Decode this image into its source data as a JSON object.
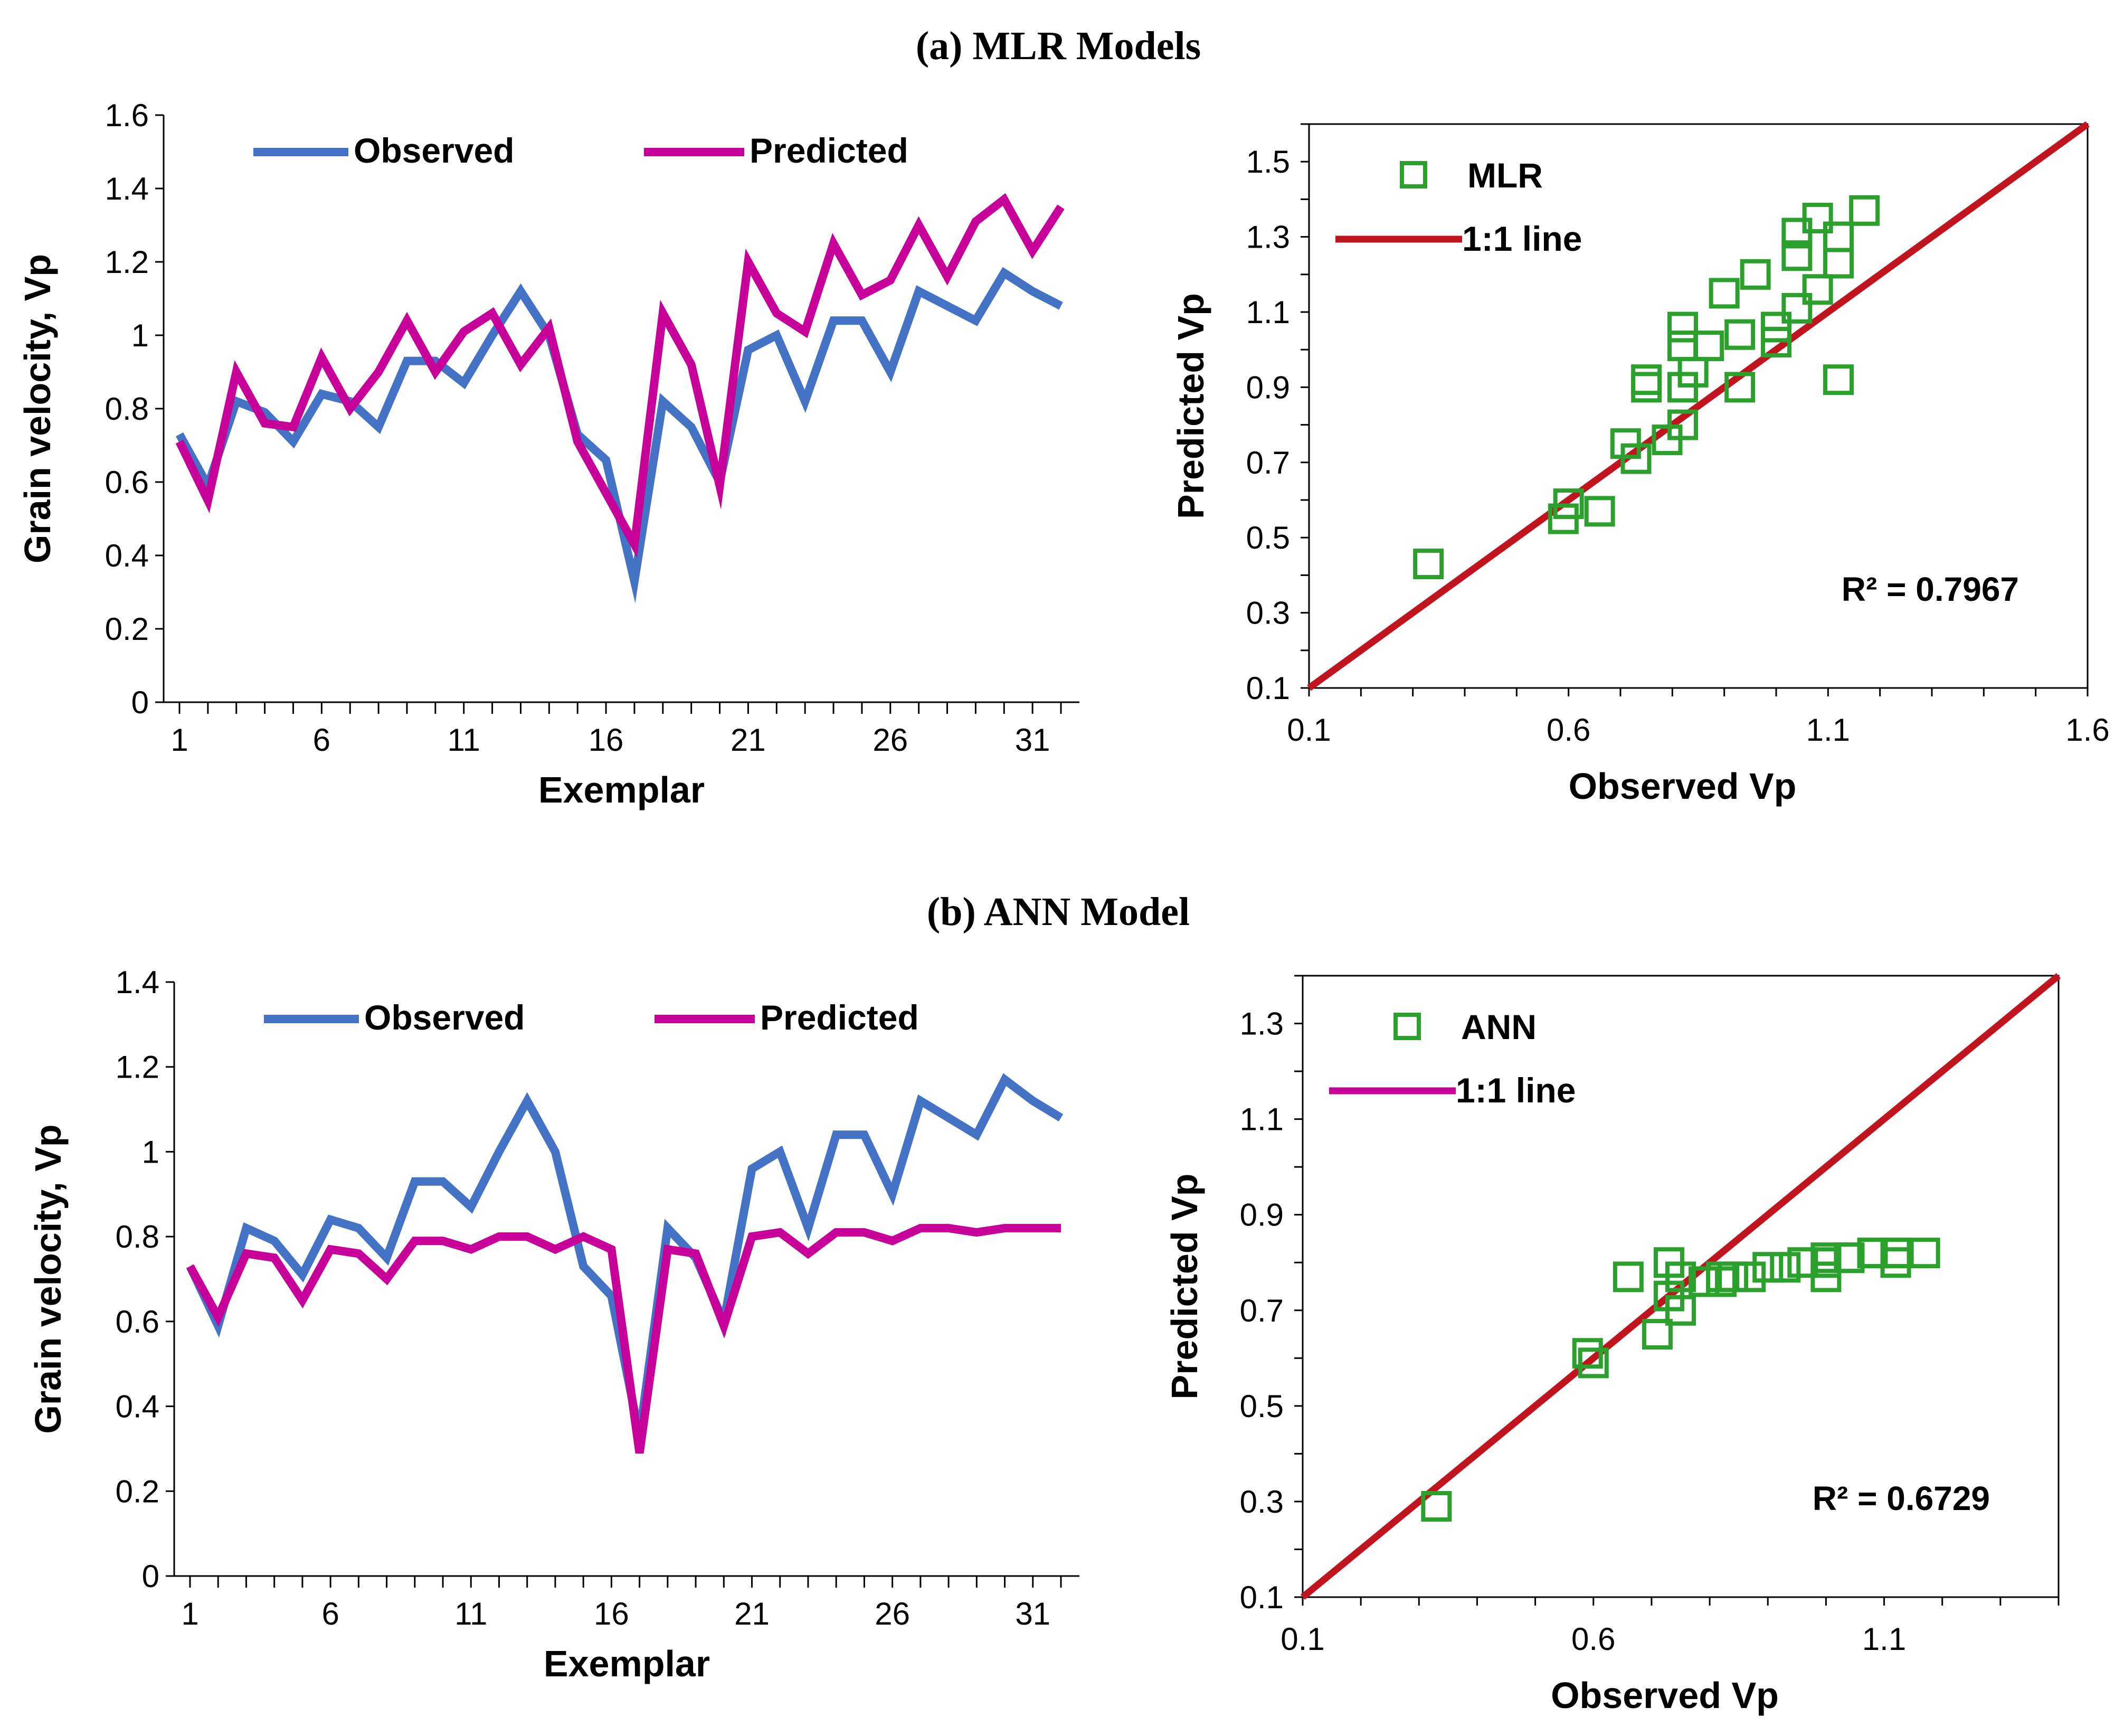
{
  "titles": [
    "(a) MLR Models",
    "(b) ANN Model"
  ],
  "colors": {
    "observed": "#4472C4",
    "predicted": "#C8009A",
    "marker": "#2CA02C",
    "line11_a": "#C0141E",
    "line11_b": "#C0141E",
    "legend11_b": "#C8009A"
  },
  "chart_data": [
    {
      "type": "line",
      "panel": "a-left",
      "xlabel": "Exemplar",
      "ylabel": "Grain velocity, Vp",
      "xlim": [
        1,
        32
      ],
      "ylim": [
        0,
        1.6
      ],
      "xticks": [
        "1",
        "6",
        "11",
        "16",
        "21",
        "26",
        "31"
      ],
      "yticks": [
        "0",
        "0.2",
        "0.4",
        "0.6",
        "0.8",
        "1",
        "1.2",
        "1.4",
        "1.6"
      ],
      "legend_position": "top-left",
      "x": [
        1,
        2,
        3,
        4,
        5,
        6,
        7,
        8,
        9,
        10,
        11,
        12,
        13,
        14,
        15,
        16,
        17,
        18,
        19,
        20,
        21,
        22,
        23,
        24,
        25,
        26,
        27,
        28,
        29,
        30,
        31,
        32
      ],
      "series": [
        {
          "name": "Observed",
          "values": [
            0.73,
            0.59,
            0.82,
            0.79,
            0.71,
            0.84,
            0.82,
            0.75,
            0.93,
            0.93,
            0.87,
            1.0,
            1.12,
            1.0,
            0.73,
            0.66,
            0.33,
            0.82,
            0.75,
            0.6,
            0.96,
            1.0,
            0.82,
            1.04,
            1.04,
            0.9,
            1.12,
            1.08,
            1.04,
            1.17,
            1.12,
            1.08
          ]
        },
        {
          "name": "Predicted",
          "values": [
            0.71,
            0.55,
            0.9,
            0.76,
            0.75,
            0.94,
            0.8,
            0.9,
            1.04,
            0.9,
            1.01,
            1.06,
            0.92,
            1.02,
            0.71,
            0.57,
            0.43,
            1.06,
            0.92,
            0.59,
            1.2,
            1.06,
            1.01,
            1.25,
            1.11,
            1.15,
            1.3,
            1.16,
            1.31,
            1.37,
            1.23,
            1.35
          ]
        }
      ]
    },
    {
      "type": "scatter",
      "panel": "a-right",
      "xlabel": "Observed Vp",
      "ylabel": "Predicted Vp",
      "xlim": [
        0.1,
        1.6
      ],
      "ylim": [
        0.1,
        1.6
      ],
      "xticks": [
        "0.1",
        "0.6",
        "1.1",
        "1.6"
      ],
      "yticks": [
        "0.1",
        "0.3",
        "0.5",
        "0.7",
        "0.9",
        "1.1",
        "1.3",
        "1.5"
      ],
      "legend_position": "top-left",
      "annotation": "R² = 0.7967",
      "series": [
        {
          "name": "MLR",
          "points": [
            [
              0.33,
              0.43
            ],
            [
              0.59,
              0.55
            ],
            [
              0.6,
              0.59
            ],
            [
              0.66,
              0.57
            ],
            [
              0.71,
              0.75
            ],
            [
              0.73,
              0.71
            ],
            [
              0.75,
              0.92
            ],
            [
              0.75,
              0.9
            ],
            [
              0.79,
              0.76
            ],
            [
              0.82,
              1.06
            ],
            [
              0.82,
              1.01
            ],
            [
              0.82,
              0.8
            ],
            [
              0.82,
              0.9
            ],
            [
              0.84,
              0.94
            ],
            [
              0.87,
              1.01
            ],
            [
              0.9,
              1.15
            ],
            [
              0.93,
              1.04
            ],
            [
              0.93,
              0.9
            ],
            [
              0.96,
              1.2
            ],
            [
              1.0,
              1.02
            ],
            [
              1.0,
              1.06
            ],
            [
              1.04,
              1.11
            ],
            [
              1.04,
              1.25
            ],
            [
              1.04,
              1.31
            ],
            [
              1.08,
              1.35
            ],
            [
              1.08,
              1.16
            ],
            [
              1.12,
              1.3
            ],
            [
              1.12,
              1.23
            ],
            [
              1.12,
              0.92
            ],
            [
              1.17,
              1.37
            ]
          ]
        },
        {
          "name": "1:1 line",
          "points": [
            [
              0.1,
              0.1
            ],
            [
              1.6,
              1.6
            ]
          ]
        }
      ]
    },
    {
      "type": "line",
      "panel": "b-left",
      "xlabel": "Exemplar",
      "ylabel": "Grain velocity, Vp",
      "xlim": [
        1,
        32
      ],
      "ylim": [
        0,
        1.4
      ],
      "xticks": [
        "1",
        "6",
        "11",
        "16",
        "21",
        "26",
        "31"
      ],
      "yticks": [
        "0",
        "0.2",
        "0.4",
        "0.6",
        "0.8",
        "1",
        "1.2",
        "1.4"
      ],
      "legend_position": "top-left",
      "x": [
        1,
        2,
        3,
        4,
        5,
        6,
        7,
        8,
        9,
        10,
        11,
        12,
        13,
        14,
        15,
        16,
        17,
        18,
        19,
        20,
        21,
        22,
        23,
        24,
        25,
        26,
        27,
        28,
        29,
        30,
        31,
        32
      ],
      "series": [
        {
          "name": "Observed",
          "values": [
            0.73,
            0.59,
            0.82,
            0.79,
            0.71,
            0.84,
            0.82,
            0.75,
            0.93,
            0.93,
            0.87,
            1.0,
            1.12,
            1.0,
            0.73,
            0.66,
            0.33,
            0.82,
            0.75,
            0.6,
            0.96,
            1.0,
            0.82,
            1.04,
            1.04,
            0.9,
            1.12,
            1.08,
            1.04,
            1.17,
            1.12,
            1.08
          ]
        },
        {
          "name": "Predicted",
          "values": [
            0.73,
            0.61,
            0.76,
            0.75,
            0.65,
            0.77,
            0.76,
            0.7,
            0.79,
            0.79,
            0.77,
            0.8,
            0.8,
            0.77,
            0.8,
            0.77,
            0.29,
            0.77,
            0.76,
            0.59,
            0.8,
            0.81,
            0.76,
            0.81,
            0.81,
            0.79,
            0.82,
            0.82,
            0.81,
            0.82,
            0.82,
            0.82
          ]
        }
      ]
    },
    {
      "type": "scatter",
      "panel": "b-right",
      "xlabel": "Observed Vp",
      "ylabel": "Predicted Vp",
      "xlim": [
        0.1,
        1.4
      ],
      "ylim": [
        0.1,
        1.4
      ],
      "xticks": [
        "0.1",
        "0.6",
        "1.1"
      ],
      "yticks": [
        "0.1",
        "0.3",
        "0.5",
        "0.7",
        "0.9",
        "1.1",
        "1.3"
      ],
      "legend_position": "top-left",
      "annotation": "R² = 0.6729",
      "series": [
        {
          "name": "ANN",
          "points": [
            [
              0.33,
              0.29
            ],
            [
              0.59,
              0.61
            ],
            [
              0.6,
              0.59
            ],
            [
              0.66,
              0.77
            ],
            [
              0.71,
              0.65
            ],
            [
              0.73,
              0.8
            ],
            [
              0.73,
              0.73
            ],
            [
              0.75,
              0.77
            ],
            [
              0.75,
              0.7
            ],
            [
              0.79,
              0.76
            ],
            [
              0.82,
              0.76
            ],
            [
              0.82,
              0.77
            ],
            [
              0.84,
              0.77
            ],
            [
              0.87,
              0.77
            ],
            [
              0.9,
              0.79
            ],
            [
              0.93,
              0.79
            ],
            [
              0.96,
              0.8
            ],
            [
              1.0,
              0.8
            ],
            [
              1.0,
              0.81
            ],
            [
              1.0,
              0.77
            ],
            [
              1.04,
              0.81
            ],
            [
              1.04,
              0.81
            ],
            [
              1.08,
              0.82
            ],
            [
              1.08,
              0.82
            ],
            [
              1.12,
              0.82
            ],
            [
              1.12,
              0.82
            ],
            [
              1.12,
              0.8
            ],
            [
              1.17,
              0.82
            ]
          ]
        },
        {
          "name": "1:1 line",
          "points": [
            [
              0.1,
              0.1
            ],
            [
              1.4,
              1.4
            ]
          ]
        }
      ]
    }
  ]
}
